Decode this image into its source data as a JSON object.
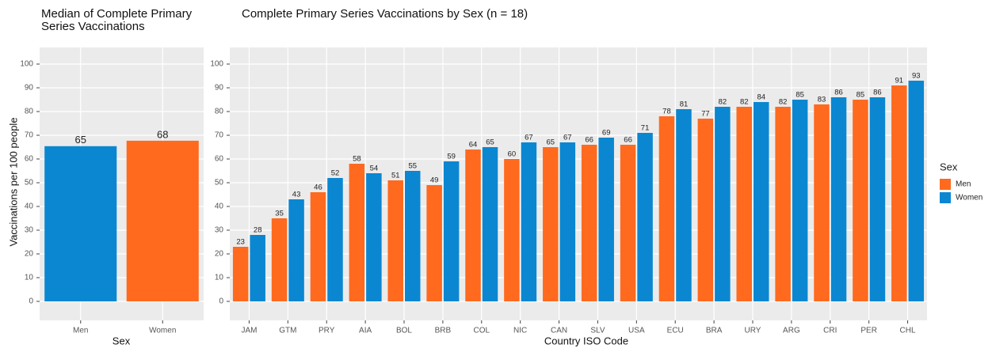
{
  "chart_data": [
    {
      "type": "bar",
      "title": "Median of Complete Primary Series Vaccinations",
      "x_label": "Sex",
      "y_label": "Vaccinations per 100 people",
      "categories": [
        "Men",
        "Women"
      ],
      "values": [
        65.4,
        67.7
      ],
      "value_labels": [
        "65",
        "68"
      ],
      "colors": [
        "#0b87d1",
        "#ff6a1f"
      ],
      "ylim": [
        -8,
        107
      ],
      "yticks": [
        0,
        10,
        20,
        30,
        40,
        50,
        60,
        70,
        80,
        90,
        100
      ],
      "grid": true
    },
    {
      "type": "grouped_bar",
      "title": "Complete Primary Series Vaccinations by Sex (n = 18)",
      "x_label": "Country ISO Code",
      "categories": [
        "JAM",
        "GTM",
        "PRY",
        "AIA",
        "BOL",
        "BRB",
        "COL",
        "NIC",
        "CAN",
        "SLV",
        "USA",
        "ECU",
        "BRA",
        "URY",
        "ARG",
        "CRI",
        "PER",
        "CHL"
      ],
      "series": [
        {
          "name": "Men",
          "color": "#ff6a1f",
          "values": [
            23,
            35,
            46,
            58,
            51,
            49,
            64,
            60,
            65,
            66,
            66,
            78,
            77,
            82,
            82,
            83,
            85,
            91
          ]
        },
        {
          "name": "Women",
          "color": "#0b87d1",
          "values": [
            28,
            43,
            52,
            54,
            55,
            59,
            65,
            67,
            67,
            69,
            71,
            81,
            82,
            84,
            85,
            86,
            86,
            93
          ]
        }
      ],
      "legend": {
        "title": "Sex",
        "position": "right"
      },
      "ylim": [
        -8,
        107
      ],
      "yticks": [
        0,
        10,
        20,
        30,
        40,
        50,
        60,
        70,
        80,
        90,
        100
      ],
      "grid": true
    }
  ]
}
